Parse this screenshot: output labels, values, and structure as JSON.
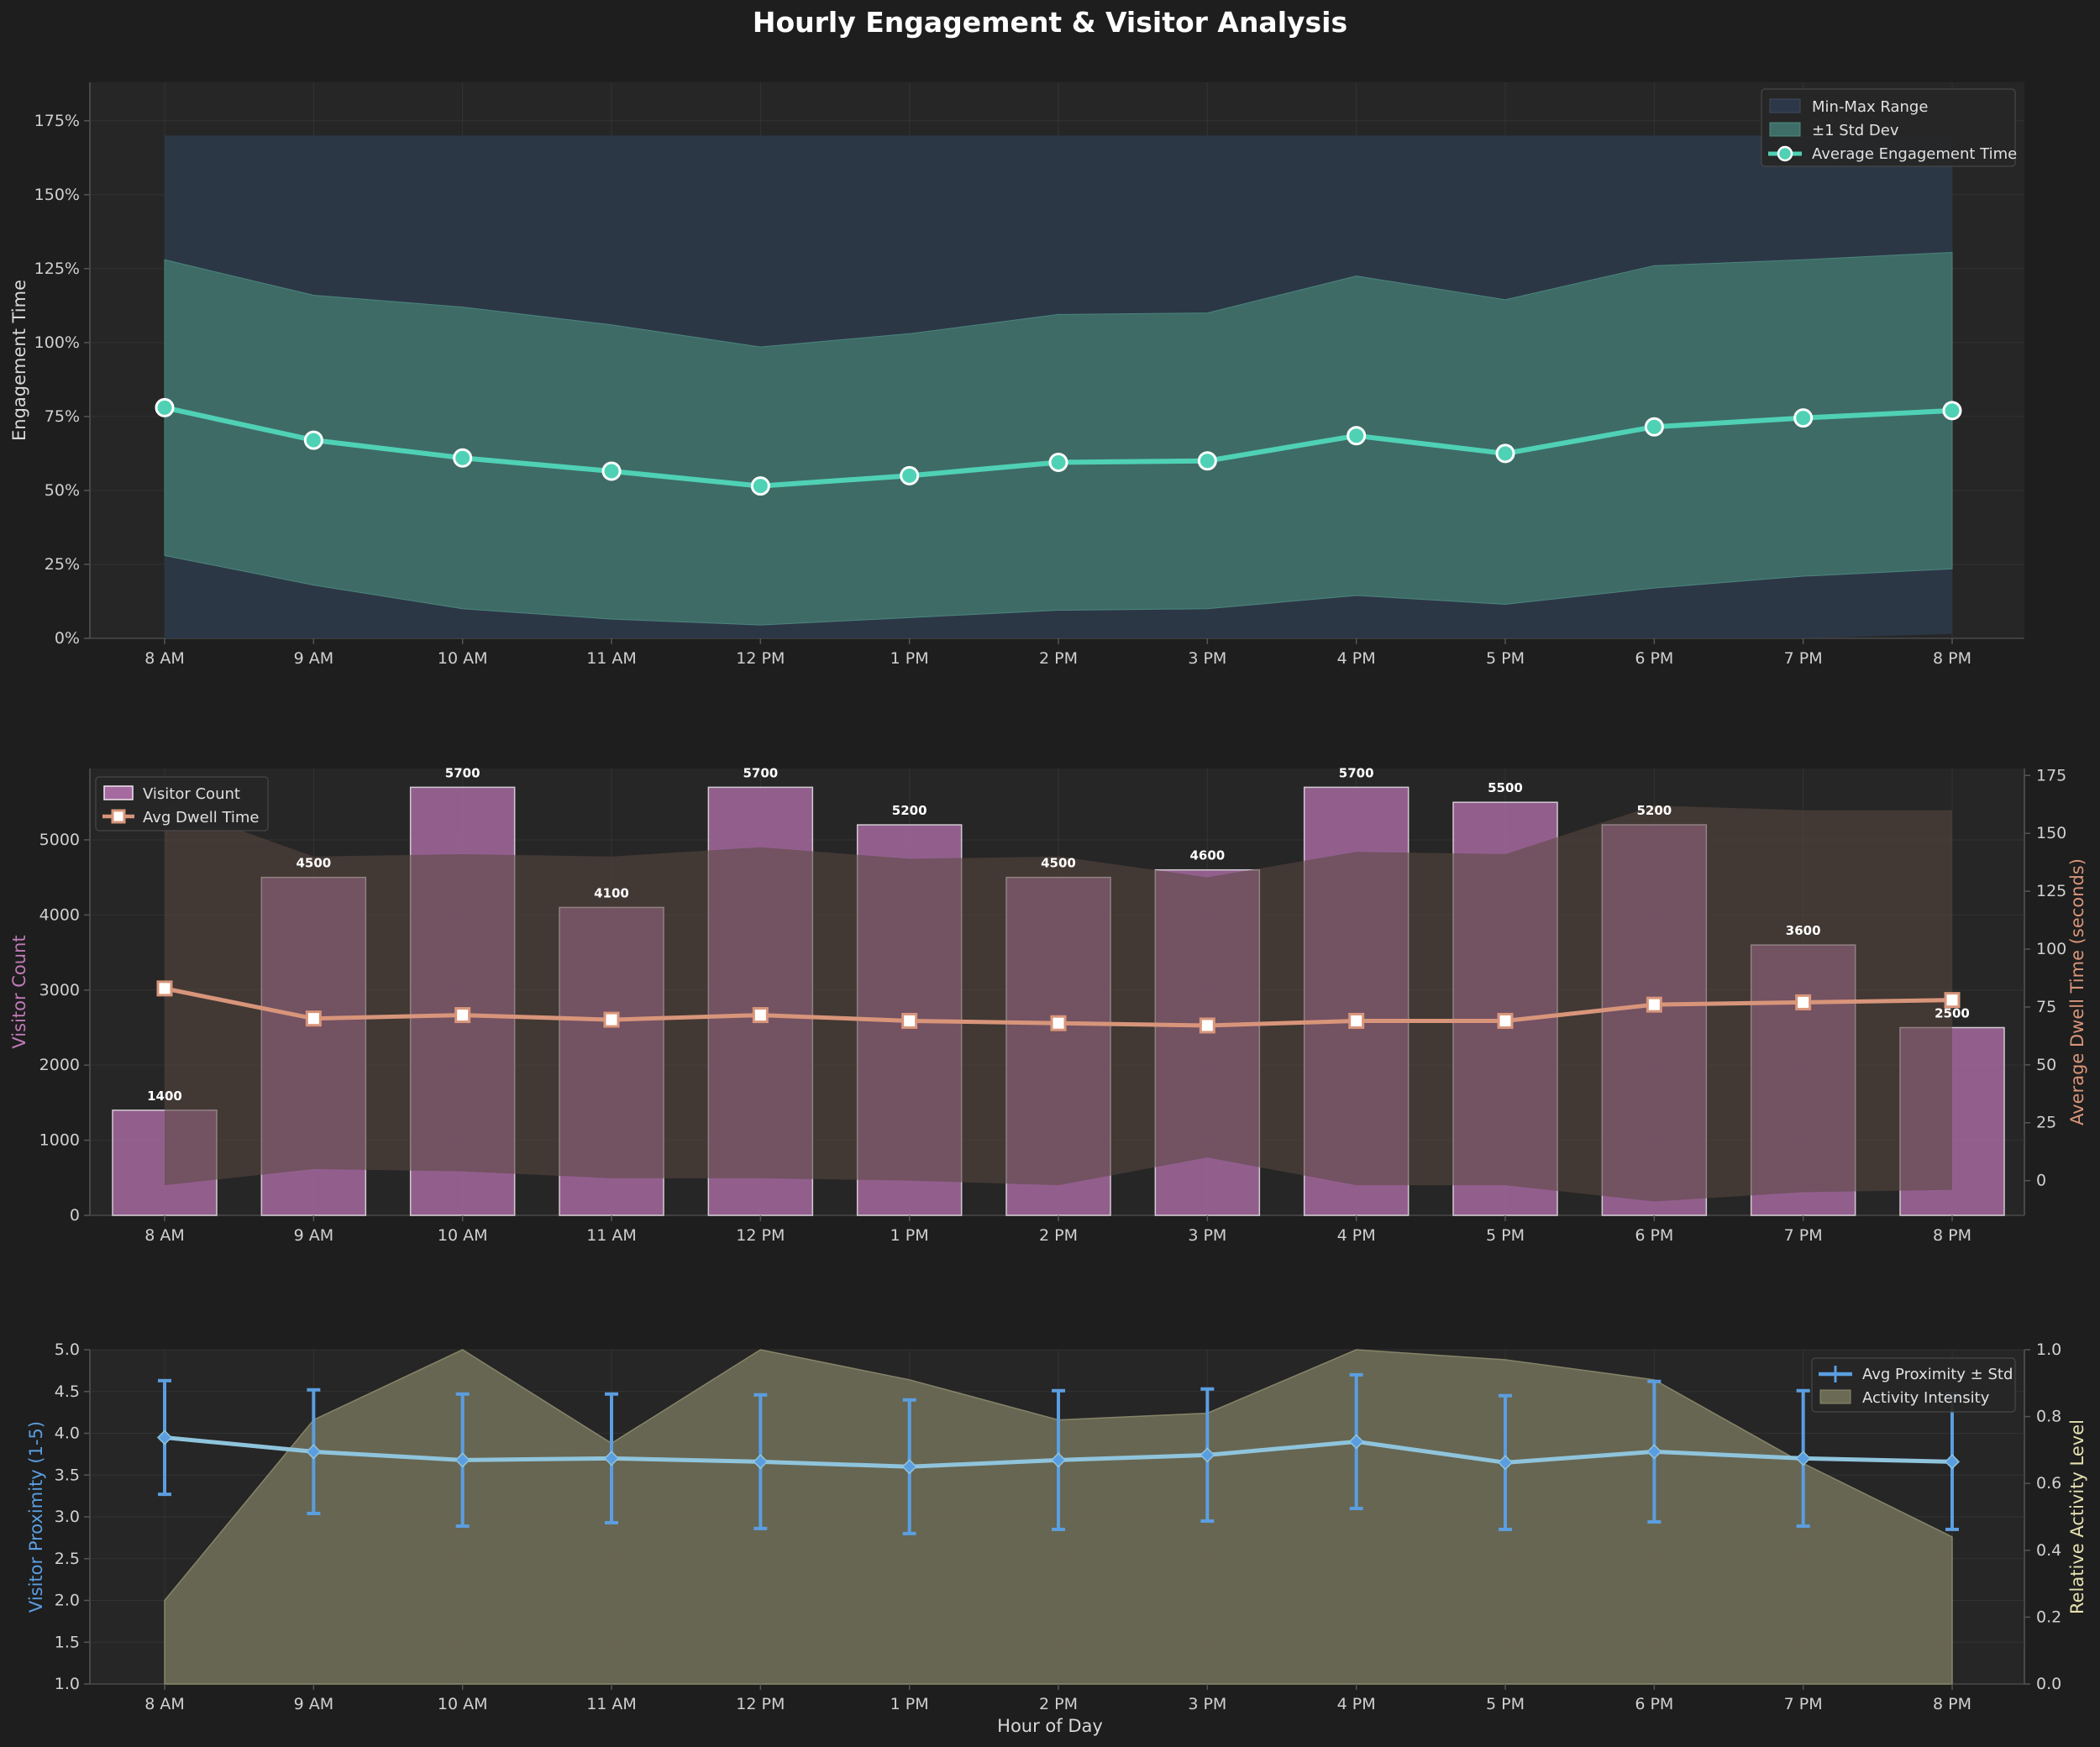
{
  "page": {
    "title": "Hourly Engagement & Visitor Analysis"
  },
  "chart_data": [
    {
      "type": "line",
      "hours": [
        "8 AM",
        "9 AM",
        "10 AM",
        "11 AM",
        "12 PM",
        "1 PM",
        "2 PM",
        "3 PM",
        "4 PM",
        "5 PM",
        "6 PM",
        "7 PM",
        "8 PM"
      ],
      "ylabel": "Engagement Time",
      "ylim": [
        0,
        188
      ],
      "yticks": [
        "0%",
        "25%",
        "50%",
        "75%",
        "100%",
        "125%",
        "150%",
        "175%"
      ],
      "average": [
        78,
        67,
        61,
        56.5,
        51.5,
        55,
        59.5,
        60,
        68.5,
        62.5,
        71.5,
        74.5,
        77
      ],
      "std_upper": [
        128,
        116,
        112,
        106,
        98.5,
        103,
        109.5,
        110,
        122.5,
        114.5,
        126,
        128,
        130.5
      ],
      "std_lower": [
        28,
        18,
        10,
        6.5,
        4.5,
        7,
        9.5,
        10,
        14.5,
        11.5,
        17,
        21,
        23.5
      ],
      "range_max": [
        170,
        170,
        170,
        170,
        170,
        170,
        170,
        170,
        170,
        170,
        170,
        170,
        170
      ],
      "range_min": [
        0,
        0,
        0,
        0,
        0,
        0,
        0,
        0,
        0,
        0,
        0,
        0,
        1.5
      ],
      "legend": [
        "Min-Max Range",
        "±1 Std Dev",
        "Average Engagement Time"
      ],
      "legend_position": "top-right",
      "colors": {
        "avg": "#4fd1b5",
        "std": "#3f6e68",
        "range": "#2c3848"
      }
    },
    {
      "type": "bar",
      "hours": [
        "8 AM",
        "9 AM",
        "10 AM",
        "11 AM",
        "12 PM",
        "1 PM",
        "2 PM",
        "3 PM",
        "4 PM",
        "5 PM",
        "6 PM",
        "7 PM",
        "8 PM"
      ],
      "visitor_count": [
        1400,
        4500,
        5700,
        4100,
        5700,
        5200,
        4500,
        4600,
        5700,
        5500,
        5200,
        3600,
        2500
      ],
      "avg_dwell_time": [
        83,
        70,
        71.5,
        69.5,
        71.5,
        69,
        68,
        67,
        69,
        69,
        76,
        77,
        78
      ],
      "dwell_upper": [
        163,
        140,
        141,
        140,
        144,
        139,
        140,
        131,
        142,
        141,
        162,
        160,
        160
      ],
      "dwell_lower": [
        -2,
        5,
        4,
        1,
        1,
        0,
        -2,
        10,
        -2,
        -2,
        -9,
        -5,
        -4
      ],
      "ylabel_left": "Visitor Count",
      "ylabel_right": "Average Dwell Time (seconds)",
      "ylim_left": [
        0,
        5950
      ],
      "ylim_right": [
        -15,
        178
      ],
      "yticks_left": [
        "0",
        "1000",
        "2000",
        "3000",
        "4000",
        "5000"
      ],
      "yticks_right": [
        "0",
        "25",
        "50",
        "75",
        "100",
        "125",
        "150",
        "175"
      ],
      "legend": [
        "Visitor Count",
        "Avg Dwell Time"
      ],
      "legend_position": "top-left",
      "colors": {
        "bar": "#a56aa0",
        "dwell": "#d8957a",
        "band": "#5a4740"
      }
    },
    {
      "type": "line",
      "hours": [
        "8 AM",
        "9 AM",
        "10 AM",
        "11 AM",
        "12 PM",
        "1 PM",
        "2 PM",
        "3 PM",
        "4 PM",
        "5 PM",
        "6 PM",
        "7 PM",
        "8 PM"
      ],
      "avg_proximity": [
        3.95,
        3.78,
        3.68,
        3.7,
        3.66,
        3.6,
        3.68,
        3.74,
        3.9,
        3.65,
        3.78,
        3.7,
        3.66
      ],
      "proximity_std": [
        0.68,
        0.74,
        0.79,
        0.77,
        0.8,
        0.8,
        0.83,
        0.79,
        0.8,
        0.8,
        0.84,
        0.81,
        0.81
      ],
      "activity_intensity": [
        0.25,
        0.79,
        1.0,
        0.72,
        1.0,
        0.91,
        0.79,
        0.81,
        1.0,
        0.97,
        0.91,
        0.66,
        0.44
      ],
      "xlabel": "Hour of Day",
      "ylabel_left": "Visitor Proximity (1-5)",
      "ylabel_right": "Relative Activity Level",
      "ylim_left": [
        1.0,
        5.0
      ],
      "ylim_right": [
        0,
        1.0
      ],
      "yticks_left": [
        "1.0",
        "1.5",
        "2.0",
        "2.5",
        "3.0",
        "3.5",
        "4.0",
        "4.5",
        "5.0"
      ],
      "yticks_right": [
        "0.0",
        "0.2",
        "0.4",
        "0.6",
        "0.8",
        "1.0"
      ],
      "legend": [
        "Avg Proximity ± Std",
        "Activity Intensity"
      ],
      "legend_position": "top-right",
      "colors": {
        "prox": "#8fc4dc",
        "err": "#5b9ee0",
        "activity": "#6b6a55"
      }
    }
  ]
}
